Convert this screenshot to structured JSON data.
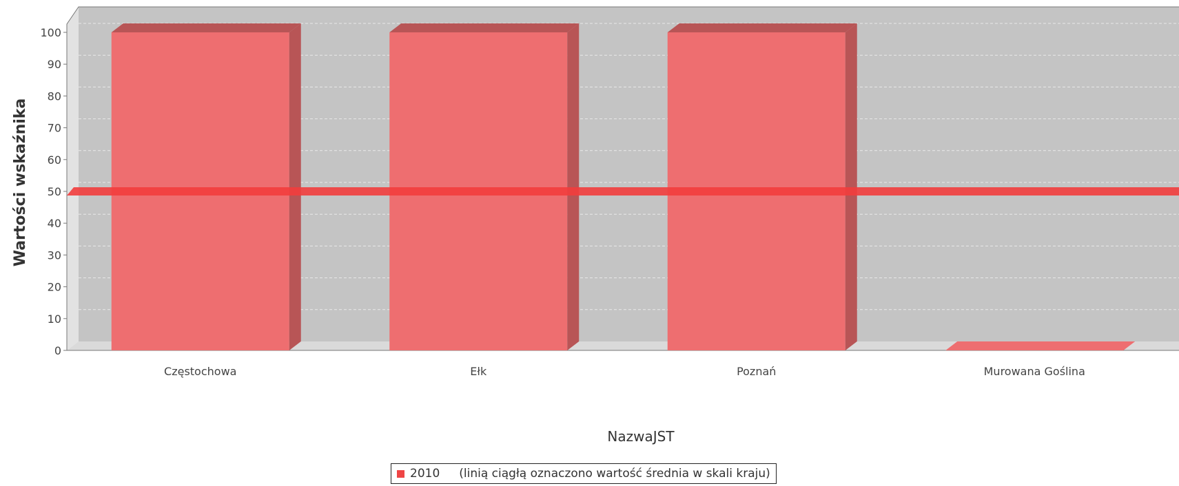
{
  "chart_data": {
    "type": "bar",
    "title": "",
    "xlabel": "NazwaJST",
    "ylabel": "Wartości wskaźnika",
    "categories": [
      "Częstochowa",
      "Ełk",
      "Poznań",
      "Murowana Goślina"
    ],
    "series": [
      {
        "name": "2010",
        "values": [
          100,
          100,
          100,
          0
        ]
      }
    ],
    "reference_line": {
      "value": 50
    },
    "ylim": [
      0,
      100
    ],
    "yticks": [
      0,
      10,
      20,
      30,
      40,
      50,
      60,
      70,
      80,
      90,
      100
    ],
    "grid": true,
    "three_d": true,
    "legend_position": "bottom",
    "legend_note": "(linią ciągłą oznaczono wartość średnia w skali kraju)",
    "colors": {
      "bar_front": "#ee6e70",
      "bar_top": "#b85556",
      "bar_side": "#b85556",
      "reference_line": "#f23d3d",
      "plot_back": "#c4c4c4",
      "plot_floor": "#dadada",
      "plot_wall": "#e2e2e2",
      "legend_swatch": "#ef4545"
    }
  }
}
